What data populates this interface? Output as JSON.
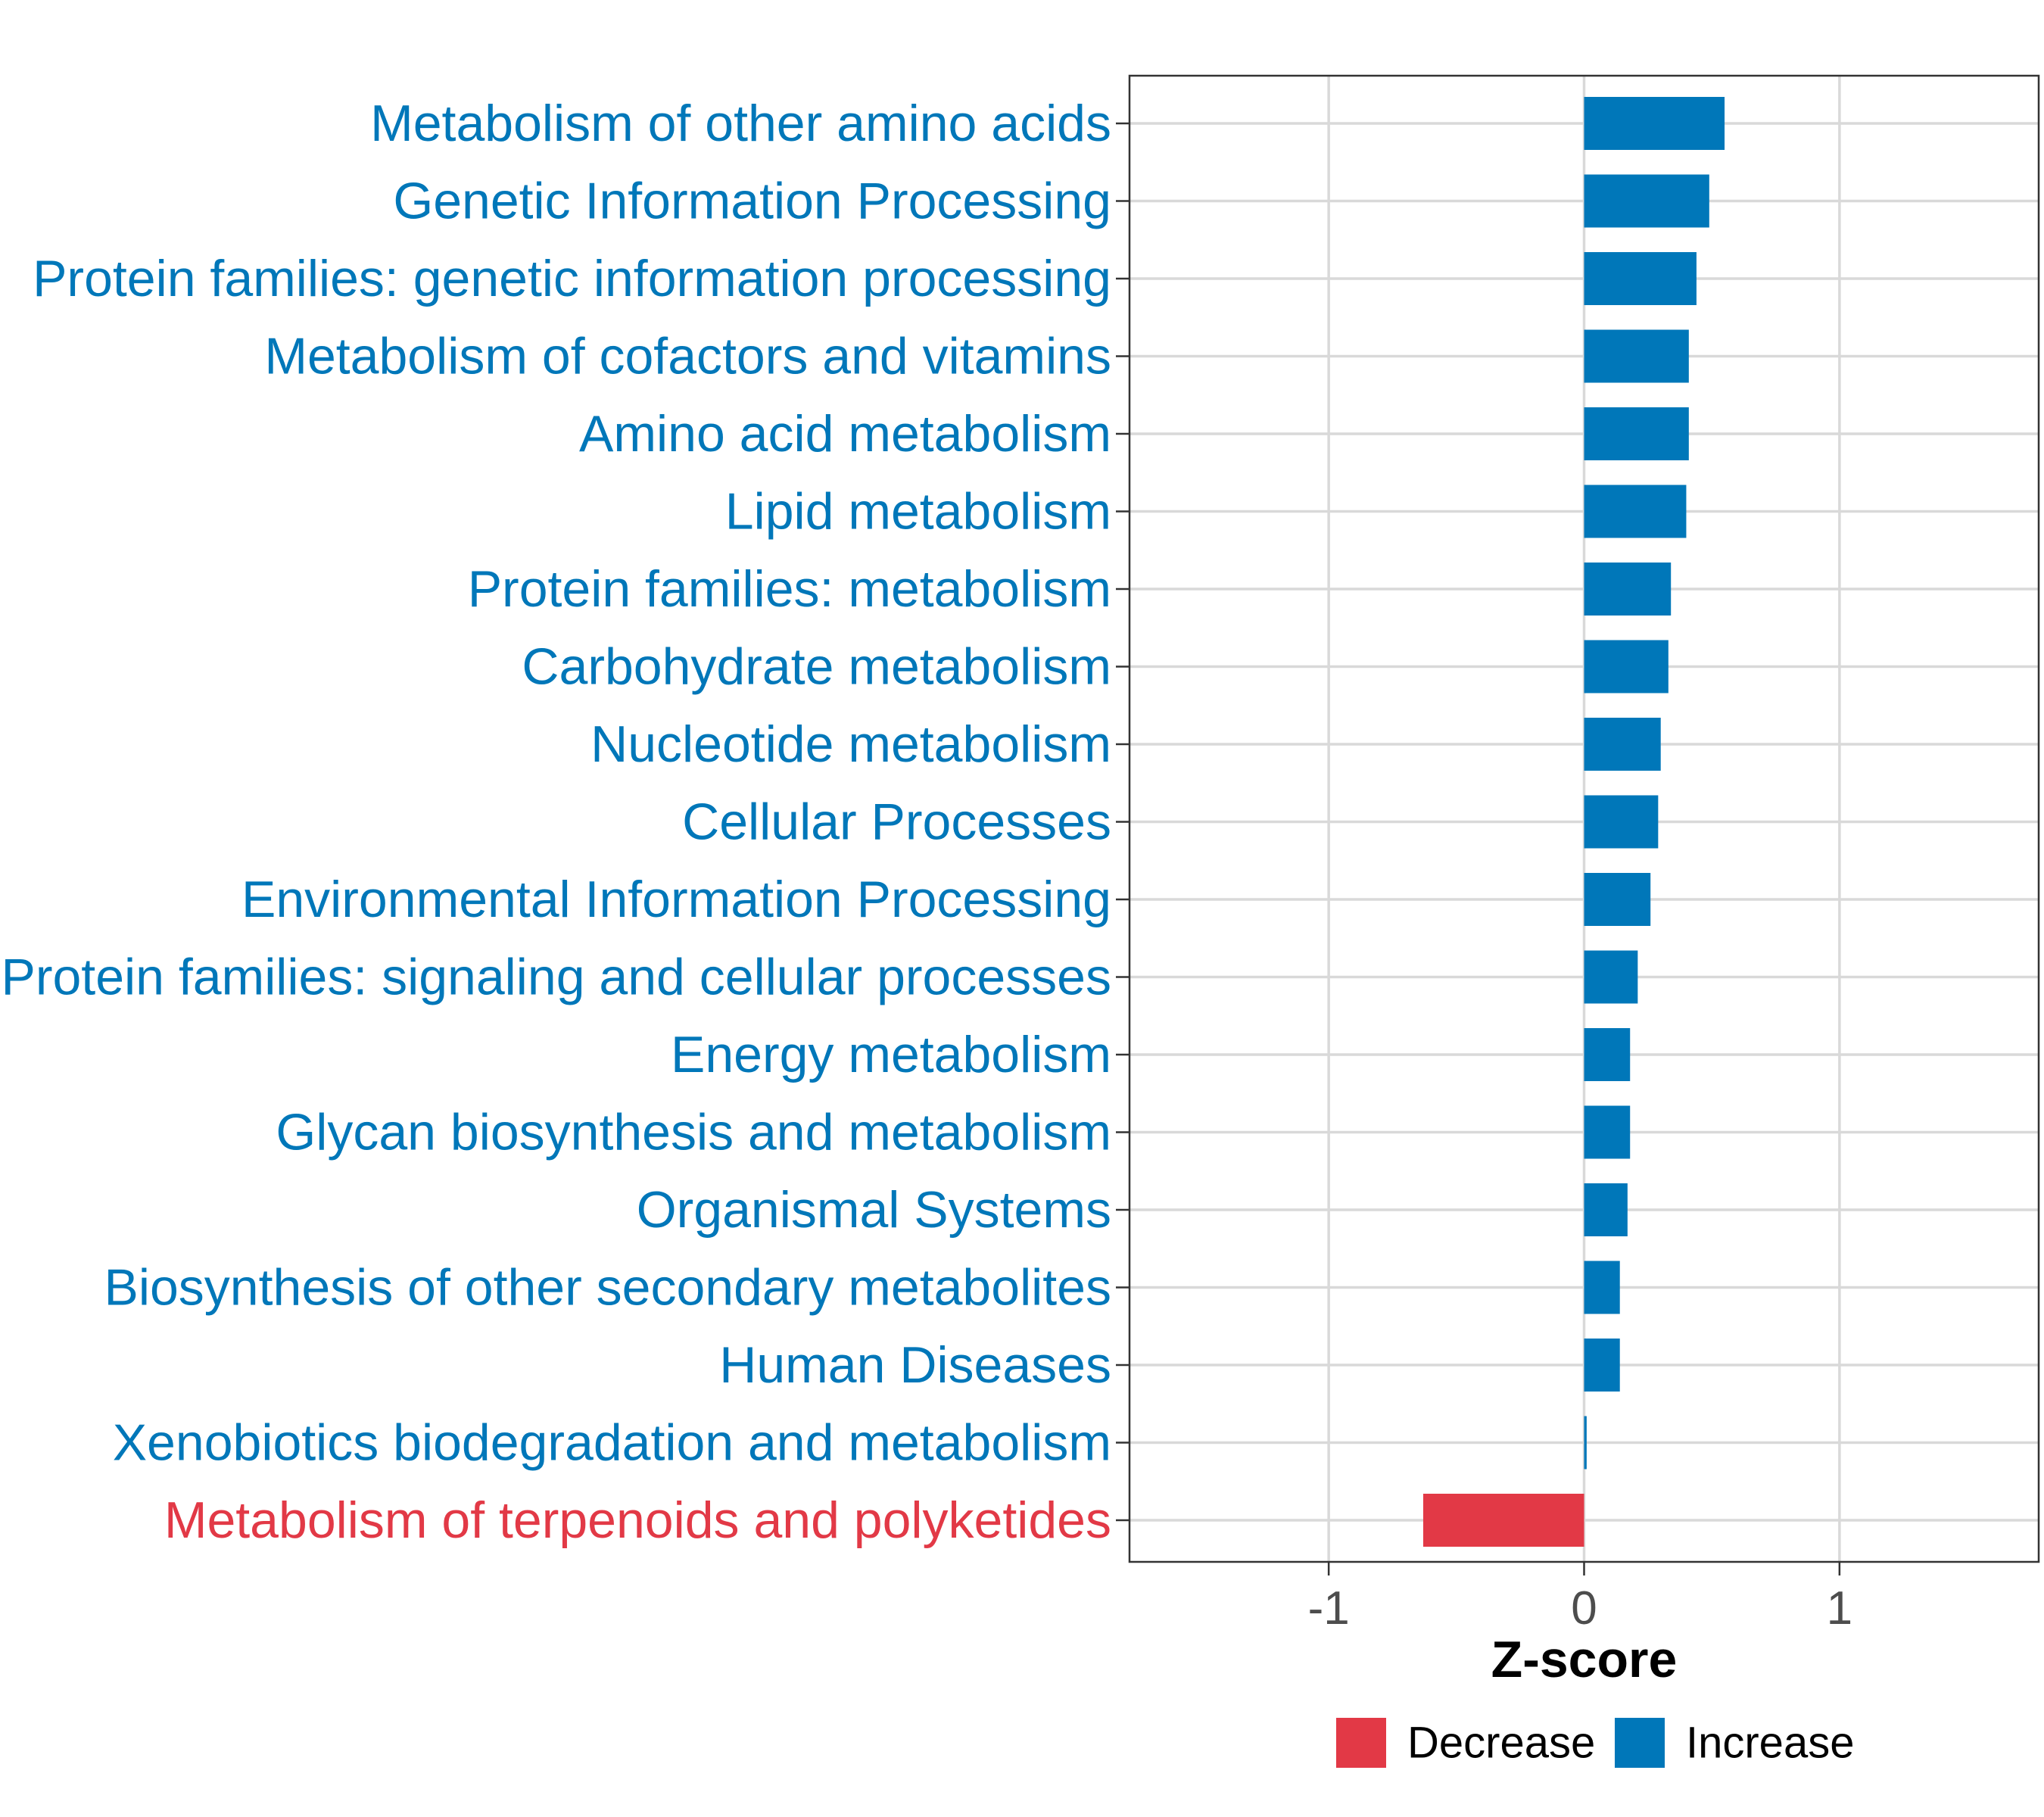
{
  "chart_data": {
    "type": "bar",
    "orientation": "horizontal",
    "title": "",
    "xlabel": "Z-score",
    "ylabel": "",
    "xlim": [
      -1.78,
      1.78
    ],
    "xticks": [
      -1,
      0,
      1
    ],
    "xtick_labels": [
      "-1",
      "0",
      "1"
    ],
    "grid": true,
    "categories": [
      "Metabolism of other amino acids",
      "Genetic Information Processing",
      "Protein families: genetic information processing",
      "Metabolism of cofactors and vitamins",
      "Amino acid metabolism",
      "Lipid metabolism",
      "Protein families: metabolism",
      "Carbohydrate metabolism",
      "Nucleotide metabolism",
      "Cellular Processes",
      "Environmental Information Processing",
      "Protein families: signaling and cellular processes",
      "Energy metabolism",
      "Glycan biosynthesis and metabolism",
      "Organismal Systems",
      "Biosynthesis of other secondary metabolites",
      "Human Diseases",
      "Xenobiotics biodegradation and metabolism",
      "Metabolism of terpenoids and polyketides"
    ],
    "values": [
      0.55,
      0.49,
      0.44,
      0.41,
      0.41,
      0.4,
      0.34,
      0.33,
      0.3,
      0.29,
      0.26,
      0.21,
      0.18,
      0.18,
      0.17,
      0.14,
      0.14,
      0.01,
      -0.63
    ],
    "groups": [
      "Increase",
      "Increase",
      "Increase",
      "Increase",
      "Increase",
      "Increase",
      "Increase",
      "Increase",
      "Increase",
      "Increase",
      "Increase",
      "Increase",
      "Increase",
      "Increase",
      "Increase",
      "Increase",
      "Increase",
      "Increase",
      "Decrease"
    ],
    "legend": {
      "position": "bottom",
      "entries": [
        {
          "label": "Decrease",
          "color": "#e23946"
        },
        {
          "label": "Increase",
          "color": "#0077b9"
        }
      ]
    },
    "colors": {
      "Increase": "#0077b9",
      "Decrease": "#e23946",
      "grid": "#d9d9d9",
      "frame": "#333333"
    }
  }
}
